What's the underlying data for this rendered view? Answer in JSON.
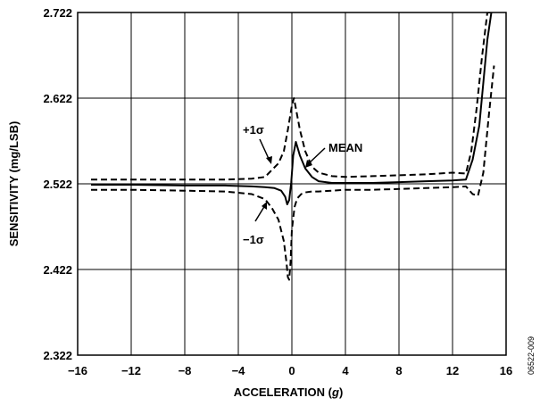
{
  "chart_data": {
    "type": "line",
    "xlabel_prefix": "ACCELERATION (",
    "xlabel_unit": "g",
    "xlabel_suffix": ")",
    "ylabel": "SENSITIVITY (mg/LSB)",
    "xlim": [
      -16,
      16
    ],
    "ylim": [
      2.322,
      2.722
    ],
    "x_ticks": [
      "−16",
      "−12",
      "−8",
      "−4",
      "0",
      "4",
      "8",
      "12",
      "16"
    ],
    "y_ticks": [
      "2.322",
      "2.422",
      "2.522",
      "2.622",
      "2.722"
    ],
    "grid": true,
    "figure_id": "06522-009",
    "annotations": {
      "mean": "MEAN",
      "plus_sigma": "+1σ",
      "minus_sigma": "−1σ"
    },
    "series": [
      {
        "style": "solid",
        "x": [
          -15,
          -12,
          -8,
          -5,
          -3,
          -2,
          -1.3,
          -0.8,
          -0.5,
          -0.35,
          -0.2,
          -0.05,
          0.1,
          0.3,
          0.6,
          1,
          1.5,
          2,
          3,
          4,
          6,
          8,
          10,
          12,
          13,
          13.5,
          14,
          14.3,
          14.6,
          14.9
        ],
        "y": [
          2.521,
          2.521,
          2.52,
          2.52,
          2.519,
          2.518,
          2.517,
          2.514,
          2.507,
          2.498,
          2.503,
          2.524,
          2.555,
          2.571,
          2.555,
          2.54,
          2.53,
          2.525,
          2.523,
          2.523,
          2.523,
          2.524,
          2.525,
          2.526,
          2.527,
          2.55,
          2.59,
          2.64,
          2.69,
          2.722
        ]
      },
      {
        "style": "dashed",
        "x": [
          -15,
          -12,
          -8,
          -5,
          -3,
          -2,
          -1.5,
          -1,
          -0.6,
          -0.3,
          0,
          0.15,
          0.3,
          0.6,
          1,
          1.5,
          2,
          3,
          4,
          6,
          8,
          10,
          12,
          13,
          13.4,
          13.8,
          14.2,
          14.6,
          14.9
        ],
        "y": [
          2.527,
          2.527,
          2.527,
          2.527,
          2.528,
          2.53,
          2.538,
          2.546,
          2.56,
          2.585,
          2.613,
          2.622,
          2.61,
          2.585,
          2.56,
          2.542,
          2.535,
          2.531,
          2.53,
          2.531,
          2.532,
          2.533,
          2.535,
          2.534,
          2.56,
          2.61,
          2.67,
          2.722,
          2.722
        ]
      },
      {
        "style": "dashed",
        "x": [
          -15,
          -12,
          -8,
          -5,
          -3,
          -2,
          -1.5,
          -1,
          -0.6,
          -0.4,
          -0.3,
          -0.2,
          -0.1,
          0,
          0.2,
          0.4,
          0.7,
          1,
          1.5,
          2,
          3,
          4,
          6,
          8,
          10,
          12,
          13,
          13.5,
          13.9,
          14.3,
          14.7,
          15.1
        ],
        "y": [
          2.515,
          2.515,
          2.514,
          2.513,
          2.51,
          2.504,
          2.494,
          2.48,
          2.455,
          2.43,
          2.413,
          2.41,
          2.43,
          2.468,
          2.495,
          2.505,
          2.51,
          2.512,
          2.513,
          2.513,
          2.514,
          2.515,
          2.515,
          2.516,
          2.517,
          2.518,
          2.519,
          2.51,
          2.508,
          2.535,
          2.6,
          2.66
        ]
      }
    ]
  }
}
